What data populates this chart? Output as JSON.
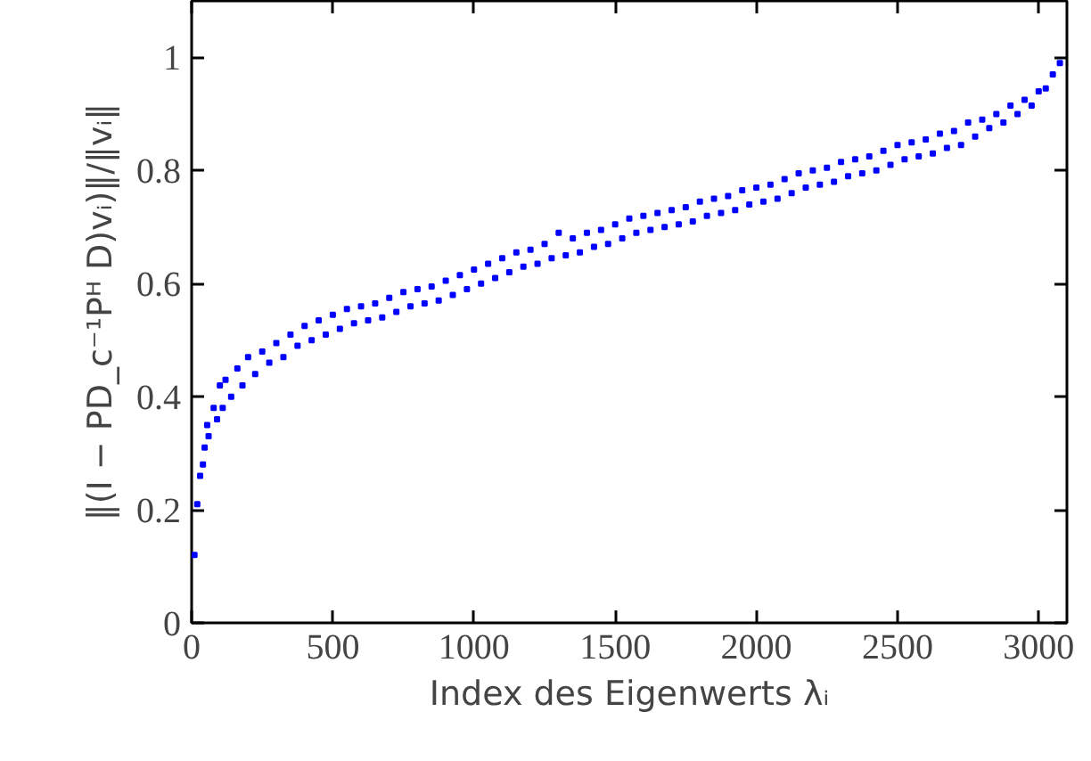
{
  "chart_data": {
    "type": "scatter",
    "xlabel": "Index des Eigenwerts λᵢ",
    "ylabel": "‖(I − PD_c⁻¹Pᴴ D)vᵢ)‖/‖vᵢ‖",
    "xlim": [
      0,
      3100
    ],
    "ylim": [
      0,
      1.1
    ],
    "xticks": [
      0,
      500,
      1000,
      1500,
      2000,
      2500,
      3000
    ],
    "yticks": [
      0,
      0.2,
      0.4,
      0.6,
      0.8,
      1
    ],
    "grid": false,
    "marker": "square",
    "series": [
      {
        "color": "#0000ff",
        "x": [
          10,
          20,
          30,
          40,
          46,
          55,
          60,
          78,
          90,
          100,
          110,
          120,
          140,
          162,
          180,
          200,
          225,
          250,
          275,
          300,
          325,
          350,
          375,
          400,
          425,
          450,
          475,
          500,
          525,
          550,
          575,
          600,
          625,
          650,
          675,
          700,
          725,
          750,
          775,
          800,
          825,
          850,
          875,
          900,
          925,
          950,
          975,
          1000,
          1025,
          1050,
          1075,
          1100,
          1125,
          1150,
          1175,
          1200,
          1225,
          1250,
          1275,
          1300,
          1325,
          1350,
          1375,
          1400,
          1425,
          1450,
          1475,
          1500,
          1525,
          1550,
          1575,
          1600,
          1625,
          1650,
          1675,
          1700,
          1725,
          1750,
          1775,
          1800,
          1825,
          1850,
          1875,
          1900,
          1925,
          1950,
          1975,
          2000,
          2025,
          2050,
          2075,
          2100,
          2125,
          2150,
          2175,
          2200,
          2225,
          2250,
          2275,
          2300,
          2325,
          2350,
          2375,
          2400,
          2425,
          2450,
          2475,
          2500,
          2525,
          2550,
          2575,
          2600,
          2625,
          2650,
          2675,
          2700,
          2725,
          2750,
          2775,
          2800,
          2825,
          2850,
          2875,
          2900,
          2925,
          2950,
          2975,
          3000,
          3025,
          3050,
          3075
        ],
        "values": [
          0.12,
          0.21,
          0.26,
          0.28,
          0.31,
          0.35,
          0.33,
          0.38,
          0.36,
          0.42,
          0.38,
          0.43,
          0.4,
          0.45,
          0.42,
          0.47,
          0.44,
          0.48,
          0.46,
          0.495,
          0.47,
          0.51,
          0.49,
          0.525,
          0.5,
          0.535,
          0.51,
          0.545,
          0.52,
          0.555,
          0.53,
          0.56,
          0.535,
          0.565,
          0.54,
          0.575,
          0.55,
          0.585,
          0.56,
          0.59,
          0.565,
          0.595,
          0.57,
          0.605,
          0.58,
          0.615,
          0.59,
          0.625,
          0.6,
          0.635,
          0.61,
          0.645,
          0.62,
          0.655,
          0.63,
          0.66,
          0.635,
          0.67,
          0.645,
          0.69,
          0.65,
          0.68,
          0.655,
          0.69,
          0.665,
          0.695,
          0.67,
          0.705,
          0.68,
          0.715,
          0.69,
          0.72,
          0.695,
          0.725,
          0.7,
          0.73,
          0.705,
          0.735,
          0.71,
          0.745,
          0.72,
          0.75,
          0.725,
          0.755,
          0.73,
          0.765,
          0.74,
          0.77,
          0.745,
          0.775,
          0.75,
          0.785,
          0.76,
          0.795,
          0.77,
          0.8,
          0.775,
          0.805,
          0.78,
          0.815,
          0.79,
          0.82,
          0.795,
          0.825,
          0.8,
          0.835,
          0.81,
          0.845,
          0.82,
          0.85,
          0.825,
          0.855,
          0.83,
          0.865,
          0.84,
          0.87,
          0.845,
          0.885,
          0.86,
          0.89,
          0.875,
          0.9,
          0.885,
          0.915,
          0.9,
          0.925,
          0.915,
          0.94,
          0.945,
          0.97,
          0.99
        ]
      }
    ]
  }
}
